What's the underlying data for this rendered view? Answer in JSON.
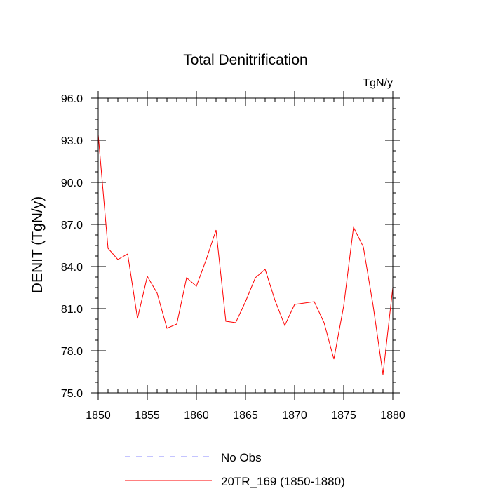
{
  "chart_data": {
    "type": "line",
    "title": "Total Denitrification",
    "units_label": "TgN/y",
    "ylabel": "DENIT  (TgN/y)",
    "xlabel": "",
    "xlim": [
      1850,
      1880
    ],
    "ylim": [
      75.0,
      96.0
    ],
    "xticks": [
      1850,
      1855,
      1860,
      1865,
      1870,
      1875,
      1880
    ],
    "yticks": [
      75.0,
      78.0,
      81.0,
      84.0,
      87.0,
      90.0,
      93.0,
      96.0
    ],
    "ytick_labels": [
      "75.0",
      "78.0",
      "81.0",
      "84.0",
      "87.0",
      "90.0",
      "93.0",
      "96.0"
    ],
    "x": [
      1850,
      1851,
      1852,
      1853,
      1854,
      1855,
      1856,
      1857,
      1858,
      1859,
      1860,
      1861,
      1862,
      1863,
      1864,
      1865,
      1866,
      1867,
      1868,
      1869,
      1870,
      1871,
      1872,
      1873,
      1874,
      1875,
      1876,
      1877,
      1878,
      1879,
      1880
    ],
    "series": [
      {
        "name": "20TR_169 (1850-1880)",
        "color": "#ff0000",
        "style": "solid",
        "values": [
          93.4,
          85.3,
          84.5,
          84.9,
          80.3,
          83.3,
          82.1,
          79.6,
          79.9,
          83.2,
          82.6,
          84.5,
          86.6,
          80.1,
          80.0,
          81.5,
          83.2,
          83.8,
          81.6,
          79.8,
          81.3,
          81.4,
          81.5,
          80.0,
          77.4,
          81.2,
          86.8,
          85.4,
          81.2,
          76.3,
          82.5
        ]
      }
    ],
    "legend": {
      "placement": "bottom",
      "entries": [
        {
          "label": "No Obs",
          "color": "#8a8aff",
          "style": "dashed"
        },
        {
          "label": "20TR_169 (1850-1880)",
          "color": "#ff0000",
          "style": "solid"
        }
      ]
    }
  }
}
